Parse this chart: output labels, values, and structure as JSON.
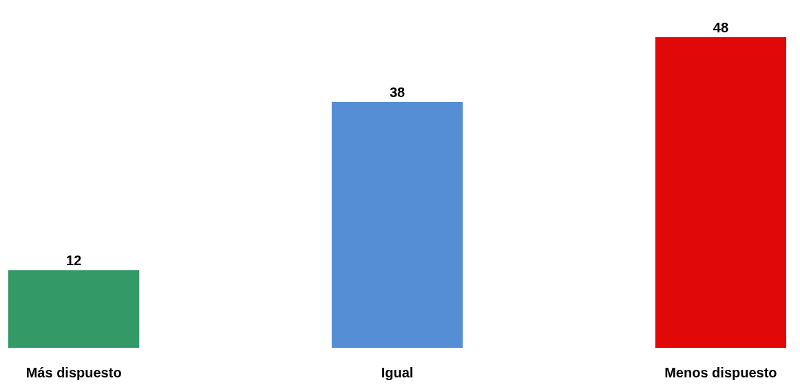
{
  "chart_data": {
    "type": "bar",
    "categories": [
      "Más dispuesto",
      "Igual",
      "Menos dispuesto"
    ],
    "values": [
      12,
      38,
      48
    ],
    "colors": [
      "#339966",
      "#558ed5",
      "#e00808"
    ],
    "data_labels": true
  }
}
